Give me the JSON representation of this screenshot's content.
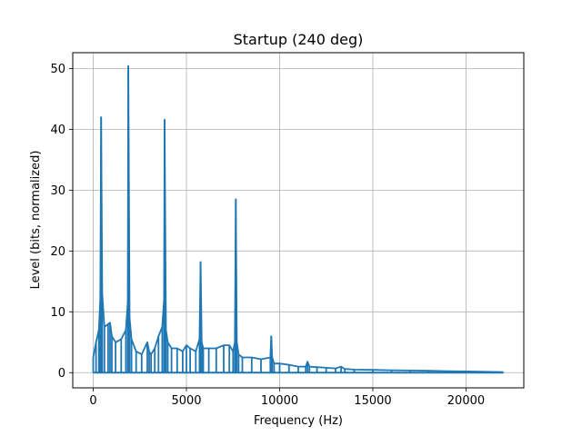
{
  "chart_data": {
    "type": "line",
    "title": "Startup (240 deg)",
    "xlabel": "Frequency (Hz)",
    "ylabel": "Level (bits, normalized)",
    "xlim": [
      -1100,
      23100
    ],
    "ylim": [
      -2.5,
      52.6
    ],
    "xticks": [
      0,
      5000,
      10000,
      15000,
      20000
    ],
    "yticks": [
      0,
      10,
      20,
      30,
      40,
      50
    ],
    "grid": true,
    "series": [
      {
        "color": "#1f77b4",
        "x": [
          0,
          150,
          300,
          380,
          420,
          480,
          600,
          800,
          900,
          1000,
          1200,
          1500,
          1750,
          1850,
          1880,
          1950,
          2050,
          2300,
          2600,
          2900,
          3000,
          3100,
          3300,
          3500,
          3700,
          3800,
          3830,
          3900,
          4000,
          4200,
          4500,
          4800,
          5000,
          5200,
          5500,
          5700,
          5760,
          5820,
          5900,
          6200,
          6600,
          7000,
          7300,
          7500,
          7600,
          7650,
          7700,
          7800,
          8000,
          8500,
          9000,
          9500,
          9550,
          9600,
          9700,
          10000,
          10500,
          11000,
          11400,
          11500,
          11600,
          12000,
          12500,
          13000,
          13300,
          13500,
          14000,
          15000,
          16000,
          17000,
          18000,
          19000,
          20000,
          21000,
          22000
        ],
        "y": [
          2.5,
          5,
          7,
          12,
          42,
          13,
          7.5,
          8,
          8.2,
          6,
          5,
          5.5,
          7,
          11.5,
          50.4,
          9,
          5.5,
          3.5,
          3,
          5,
          3.5,
          3,
          4,
          6,
          7.5,
          12,
          41.6,
          7,
          5,
          4,
          4,
          3.5,
          4.5,
          4,
          3.5,
          5.5,
          18.2,
          5,
          4,
          4,
          4,
          4.5,
          4.5,
          3.5,
          5,
          28.5,
          5,
          3,
          2.5,
          2.5,
          2.2,
          2.5,
          6,
          2.5,
          1.5,
          1.5,
          1.3,
          1,
          1,
          1.8,
          1,
          0.9,
          0.8,
          0.7,
          1,
          0.6,
          0.5,
          0.45,
          0.4,
          0.35,
          0.3,
          0.25,
          0.2,
          0.15,
          0.1
        ]
      }
    ]
  }
}
